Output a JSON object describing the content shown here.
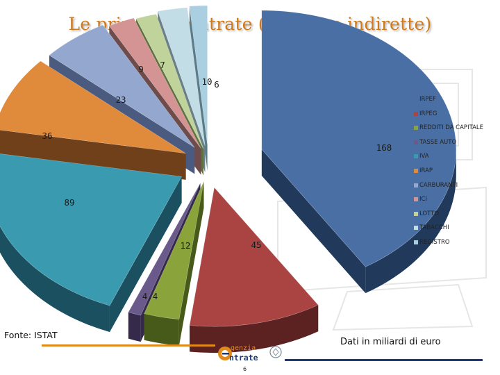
{
  "title": "Le principali entrate (dirette e indirette)",
  "source": "Fonte: ISTAT",
  "units_note": "Dati in miliardi di euro",
  "logo": {
    "line1": "genzia",
    "line2": "ntrate",
    "letter": "A"
  },
  "page_number": "6",
  "chart_data": {
    "type": "pie",
    "three_d": true,
    "legend_position": "right",
    "categories": [
      "IRPEF",
      "IRPEG",
      "REDDITI DA CAPITALE",
      "TASSE AUTO",
      "IVA",
      "IRAP",
      "CARBURANTI",
      "ICI",
      "LOTTO",
      "TABACCHI",
      "REGISTRO"
    ],
    "values": [
      168,
      45,
      12,
      4.4,
      89,
      36,
      23,
      9,
      7,
      10,
      6
    ],
    "data_labels": [
      "168",
      "45",
      "12",
      "4.4",
      "89",
      "36",
      "23",
      "9",
      "7",
      "10",
      "6"
    ],
    "colors": [
      "#4a6fa5",
      "#a94442",
      "#8aa33a",
      "#6a5a8c",
      "#3a9bb0",
      "#e08a3c",
      "#94a8cf",
      "#d49494",
      "#bfd39a",
      "#c2dde6",
      "#a9cfe0"
    ],
    "side_colors": [
      "#213a5c",
      "#5c2222",
      "#485a1a",
      "#352a4a",
      "#1a5060",
      "#70401a",
      "#4b5b80",
      "#6e4c4c",
      "#5f7040",
      "#6a8088",
      "#5a7c88"
    ]
  }
}
